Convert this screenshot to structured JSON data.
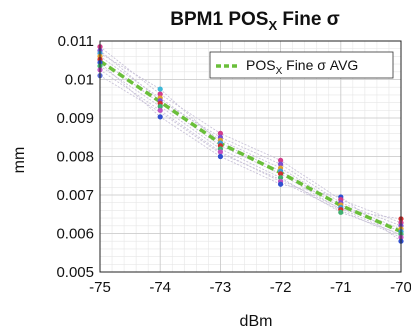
{
  "chart_data": {
    "type": "line",
    "title": "BPM1 POS",
    "title_subscript": "X",
    "title_suffix": " Fine σ",
    "xlabel": "dBm",
    "ylabel": "mm",
    "xlim": [
      -75,
      -70
    ],
    "ylim": [
      0.005,
      0.011
    ],
    "xticks": [
      "-75",
      "-74",
      "-73",
      "-72",
      "-71",
      "-70"
    ],
    "xtick_values": [
      -75,
      -74,
      -73,
      -72,
      -71,
      -70
    ],
    "yticks": [
      "0.005",
      "0.006",
      "0.007",
      "0.008",
      "0.009",
      "0.01",
      "0.011"
    ],
    "ytick_values": [
      0.005,
      0.006,
      0.007,
      0.008,
      0.009,
      0.01,
      0.011
    ],
    "grid": true,
    "minor_grid": true,
    "legend_position": "top-right",
    "series": [
      {
        "name": "POS",
        "name_subscript": "X",
        "name_suffix": " Fine σ AVG",
        "color": "#6abf3a",
        "style": "dashed",
        "x": [
          -75,
          -74,
          -73,
          -72,
          -71,
          -70
        ],
        "y": [
          0.01048,
          0.00942,
          0.00834,
          0.00758,
          0.00673,
          0.00605
        ]
      }
    ],
    "scatter_points": [
      {
        "x": -75,
        "y": 0.01085,
        "color": "#d23c8c"
      },
      {
        "x": -75,
        "y": 0.01075,
        "color": "#7a4fd0"
      },
      {
        "x": -75,
        "y": 0.01068,
        "color": "#3c9ad2"
      },
      {
        "x": -75,
        "y": 0.0106,
        "color": "#e0a030"
      },
      {
        "x": -75,
        "y": 0.01052,
        "color": "#d03030"
      },
      {
        "x": -75,
        "y": 0.01044,
        "color": "#3050d0"
      },
      {
        "x": -75,
        "y": 0.01035,
        "color": "#40b070"
      },
      {
        "x": -75,
        "y": 0.01025,
        "color": "#c050c0"
      },
      {
        "x": -75,
        "y": 0.0101,
        "color": "#5a6fd8"
      },
      {
        "x": -74,
        "y": 0.00975,
        "color": "#3cb8d8"
      },
      {
        "x": -74,
        "y": 0.00962,
        "color": "#d23c8c"
      },
      {
        "x": -74,
        "y": 0.00952,
        "color": "#e0a030"
      },
      {
        "x": -74,
        "y": 0.00945,
        "color": "#7a4fd0"
      },
      {
        "x": -74,
        "y": 0.00938,
        "color": "#d03030"
      },
      {
        "x": -74,
        "y": 0.0093,
        "color": "#40b070"
      },
      {
        "x": -74,
        "y": 0.0092,
        "color": "#c050c0"
      },
      {
        "x": -74,
        "y": 0.00903,
        "color": "#3050d0"
      },
      {
        "x": -73,
        "y": 0.0086,
        "color": "#d23c8c"
      },
      {
        "x": -73,
        "y": 0.0085,
        "color": "#7a4fd0"
      },
      {
        "x": -73,
        "y": 0.00842,
        "color": "#e0a030"
      },
      {
        "x": -73,
        "y": 0.00835,
        "color": "#3c9ad2"
      },
      {
        "x": -73,
        "y": 0.00828,
        "color": "#d03030"
      },
      {
        "x": -73,
        "y": 0.0082,
        "color": "#40b070"
      },
      {
        "x": -73,
        "y": 0.00812,
        "color": "#c050c0"
      },
      {
        "x": -73,
        "y": 0.008,
        "color": "#3050d0"
      },
      {
        "x": -72,
        "y": 0.0079,
        "color": "#d23c8c"
      },
      {
        "x": -72,
        "y": 0.0078,
        "color": "#7a4fd0"
      },
      {
        "x": -72,
        "y": 0.0077,
        "color": "#e0a030"
      },
      {
        "x": -72,
        "y": 0.00762,
        "color": "#3c9ad2"
      },
      {
        "x": -72,
        "y": 0.00755,
        "color": "#d03030"
      },
      {
        "x": -72,
        "y": 0.00745,
        "color": "#40b070"
      },
      {
        "x": -72,
        "y": 0.00735,
        "color": "#c050c0"
      },
      {
        "x": -72,
        "y": 0.00728,
        "color": "#3050d0"
      },
      {
        "x": -71,
        "y": 0.00695,
        "color": "#3050d0"
      },
      {
        "x": -71,
        "y": 0.00688,
        "color": "#d23c8c"
      },
      {
        "x": -71,
        "y": 0.0068,
        "color": "#7a4fd0"
      },
      {
        "x": -71,
        "y": 0.00674,
        "color": "#e0a030"
      },
      {
        "x": -71,
        "y": 0.00668,
        "color": "#3c9ad2"
      },
      {
        "x": -71,
        "y": 0.00662,
        "color": "#d03030"
      },
      {
        "x": -71,
        "y": 0.00655,
        "color": "#40b070"
      },
      {
        "x": -70,
        "y": 0.00638,
        "color": "#d03030"
      },
      {
        "x": -70,
        "y": 0.00628,
        "color": "#d23c8c"
      },
      {
        "x": -70,
        "y": 0.0062,
        "color": "#7a4fd0"
      },
      {
        "x": -70,
        "y": 0.00612,
        "color": "#e0a030"
      },
      {
        "x": -70,
        "y": 0.00605,
        "color": "#3c9ad2"
      },
      {
        "x": -70,
        "y": 0.00598,
        "color": "#40b070"
      },
      {
        "x": -70,
        "y": 0.0059,
        "color": "#c050c0"
      },
      {
        "x": -70,
        "y": 0.0058,
        "color": "#3050d0"
      }
    ],
    "background_traces": [
      {
        "x": [
          -75,
          -74,
          -73,
          -72,
          -71,
          -70
        ],
        "y": [
          0.01085,
          0.00962,
          0.0086,
          0.0079,
          0.00688,
          0.00628
        ]
      },
      {
        "x": [
          -75,
          -74,
          -73,
          -72,
          -71,
          -70
        ],
        "y": [
          0.01075,
          0.00945,
          0.0085,
          0.0078,
          0.0068,
          0.0062
        ]
      },
      {
        "x": [
          -75,
          -74,
          -73,
          -72,
          -71,
          -70
        ],
        "y": [
          0.01068,
          0.00975,
          0.00835,
          0.00762,
          0.00668,
          0.00605
        ]
      },
      {
        "x": [
          -75,
          -74,
          -73,
          -72,
          -71,
          -70
        ],
        "y": [
          0.0106,
          0.00952,
          0.00842,
          0.0077,
          0.00674,
          0.00612
        ]
      },
      {
        "x": [
          -75,
          -74,
          -73,
          -72,
          -71,
          -70
        ],
        "y": [
          0.01052,
          0.00938,
          0.00828,
          0.00755,
          0.00662,
          0.00638
        ]
      },
      {
        "x": [
          -75,
          -74,
          -73,
          -72,
          -71,
          -70
        ],
        "y": [
          0.01044,
          0.00903,
          0.008,
          0.00728,
          0.00695,
          0.0058
        ]
      },
      {
        "x": [
          -75,
          -74,
          -73,
          -72,
          -71,
          -70
        ],
        "y": [
          0.01035,
          0.0093,
          0.0082,
          0.00745,
          0.00655,
          0.00598
        ]
      },
      {
        "x": [
          -75,
          -74,
          -73,
          -72,
          -71,
          -70
        ],
        "y": [
          0.01025,
          0.0092,
          0.00812,
          0.00735,
          0.0066,
          0.0059
        ]
      },
      {
        "x": [
          -75,
          -74,
          -73,
          -72,
          -71,
          -70
        ],
        "y": [
          0.0101,
          0.00915,
          0.00808,
          0.0074,
          0.00665,
          0.00595
        ]
      }
    ]
  }
}
